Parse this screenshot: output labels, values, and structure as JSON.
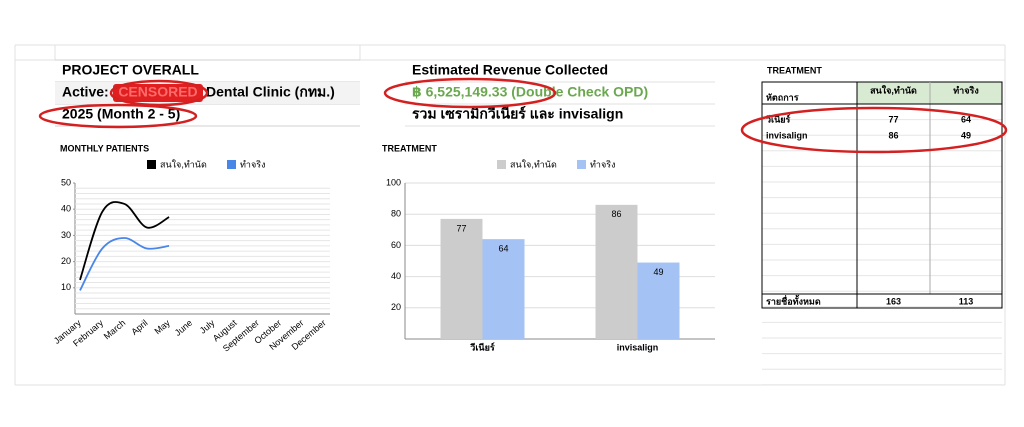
{
  "header": {
    "title": "PROJECT OVERALL",
    "active": "Active:",
    "censored": "CENSORED",
    "clinic": "Dental Clinic (กทม.)",
    "period": "2025 (Month 2 - 5)"
  },
  "revenue": {
    "title": "Estimated Revenue Collected",
    "amount": "฿ 6,525,149.33 (Double Check OPD)",
    "note": "รวม เซรามิกวีเนียร์ และ invisalign"
  },
  "chart_data": [
    {
      "type": "line",
      "title": "MONTHLY PATIENTS",
      "categories": [
        "January",
        "February",
        "March",
        "April",
        "May",
        "June",
        "July",
        "August",
        "September",
        "October",
        "November",
        "December"
      ],
      "series": [
        {
          "name": "สนใจ,ทำนัด",
          "color": "#000000",
          "values": [
            13,
            39,
            42,
            33,
            37,
            null,
            null,
            null,
            null,
            null,
            null,
            null
          ]
        },
        {
          "name": "ทำจริง",
          "color": "#4a86e8",
          "values": [
            9,
            25,
            29,
            25,
            26,
            null,
            null,
            null,
            null,
            null,
            null,
            null
          ]
        }
      ],
      "ylim": [
        0,
        50
      ],
      "yticks": [
        10,
        20,
        30,
        40,
        50
      ],
      "legend": "top"
    },
    {
      "type": "bar",
      "title": "TREATMENT",
      "categories": [
        "วีเนียร์",
        "invisalign"
      ],
      "series": [
        {
          "name": "สนใจ,ทำนัด",
          "color": "#cccccc",
          "values": [
            77,
            86
          ]
        },
        {
          "name": "ทำจริง",
          "color": "#a4c2f4",
          "values": [
            64,
            49
          ]
        }
      ],
      "ylim": [
        0,
        100
      ],
      "yticks": [
        20,
        40,
        60,
        80,
        100
      ],
      "grid": true,
      "legend": "top"
    }
  ],
  "table": {
    "title": "TREATMENT",
    "columns": [
      "หัตถการ",
      "สนใจ,ทำนัด",
      "ทำจริง"
    ],
    "rows": [
      [
        "วีเนียร์",
        "77",
        "64"
      ],
      [
        "invisalign",
        "86",
        "49"
      ]
    ],
    "total": [
      "รายชื่อทั้งหมด",
      "163",
      "113"
    ]
  }
}
